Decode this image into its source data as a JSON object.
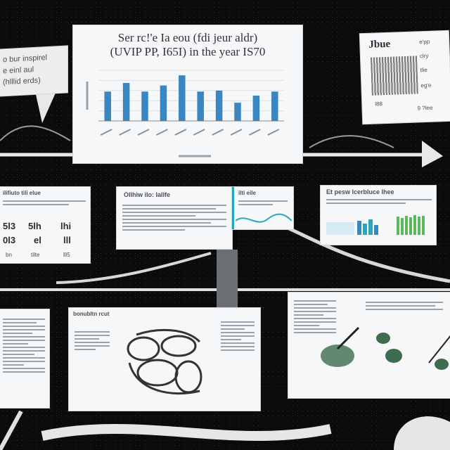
{
  "chart_card": {
    "title_line1": "Ser rc!'e Ia eou (fdi jeur aldr)",
    "title_line2": "(UVIP PP, I65I) in the year IS70",
    "ylabel": "",
    "xlabel": ""
  },
  "chart_data": {
    "type": "bar",
    "title": "Ser rc!'e Ia eou (fdi jeur aldr) (UVIP PP, I65I) in the year IS70",
    "categories": [
      "",
      "",
      "",
      "",
      "",
      "",
      "",
      "",
      "",
      ""
    ],
    "values": [
      58,
      75,
      58,
      70,
      90,
      58,
      60,
      36,
      50,
      58
    ],
    "ylim": [
      0,
      100
    ],
    "grid": true,
    "color": "#3a86c0"
  },
  "left_bubble": {
    "line1": "o bur inspirel",
    "line2": "e einl aul",
    "line3": "(hlllid erds)"
  },
  "top_right_card": {
    "heading": "Jbue",
    "side1": "e'pp",
    "side2": "clry",
    "side3": "tlie",
    "side4": "eg'e",
    "side5": "9 ?lee",
    "tag": "l88"
  },
  "mid_left_card": {
    "header": "ilifiuto tili elue",
    "stat1": "5l3",
    "stat2": "5lh",
    "stat3": "lhi",
    "stat4": "0l3",
    "stat5": "el",
    "stat6": "lll",
    "foot1": "bn",
    "foot2": "tilte",
    "foot3": "lll5"
  },
  "mid_center_card": {
    "heading": "Ollhiw ilo: Iallfe"
  },
  "mid_center_side": {
    "heading": "ilti eile"
  },
  "mid_right_card": {
    "heading": "Et pesw lcerbluce lhee"
  },
  "bottom_center_card": {
    "heading": "bonubltn rcut"
  },
  "colors": {
    "background": "#0b0b0c",
    "card": "#f6f7f8",
    "bar": "#3a86c0",
    "accent_teal": "#2aa6b8",
    "accent_green": "#5cb85c"
  }
}
